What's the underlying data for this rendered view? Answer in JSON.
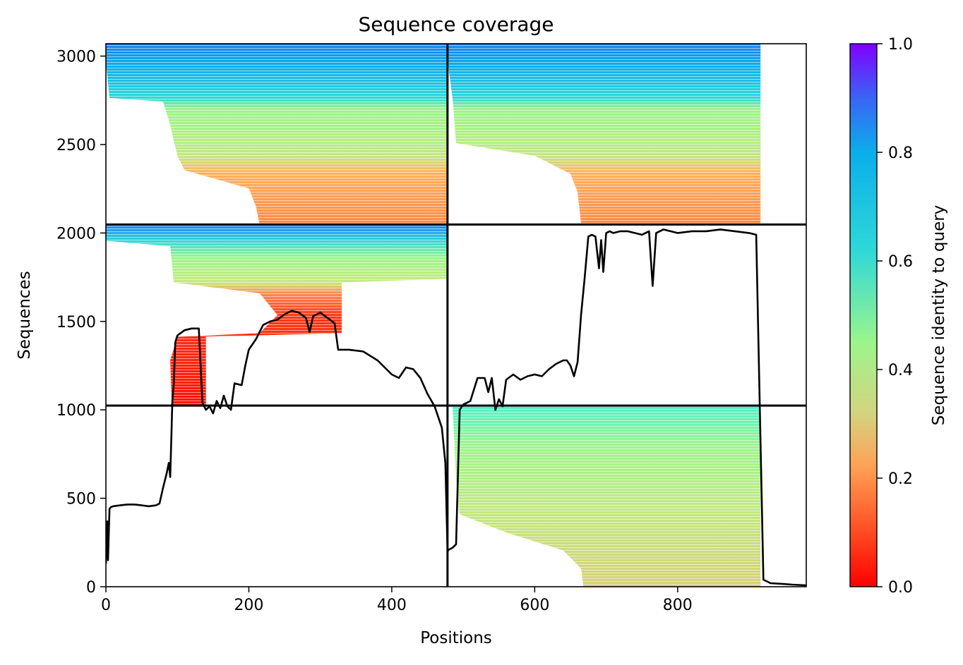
{
  "chart_data": {
    "type": "heatmap",
    "title": "Sequence coverage",
    "xlabel": "Positions",
    "ylabel": "Sequences",
    "xlim": [
      0,
      980
    ],
    "ylim": [
      0,
      3070
    ],
    "xticks": [
      0,
      200,
      400,
      600,
      800
    ],
    "yticks": [
      0,
      500,
      1000,
      1500,
      2000,
      2500,
      3000
    ],
    "grid": false,
    "colorbar": {
      "label": "Sequence identity to query",
      "range": [
        0.0,
        1.0
      ],
      "ticks": [
        0.0,
        0.2,
        0.4,
        0.6,
        0.8,
        1.0
      ],
      "colormap": "rainbow_r",
      "colors": [
        "#ff0000",
        "#ff9a55",
        "#d4d480",
        "#9cf58c",
        "#2ed8d8",
        "#0aaeea",
        "#1f80f0",
        "#8000ff"
      ]
    },
    "block_boundaries": {
      "x": [
        478
      ],
      "y": [
        1024,
        2048
      ]
    },
    "coverage_blocks": [
      {
        "x": [
          0,
          478
        ],
        "y": [
          2048,
          3070
        ],
        "identity_range": [
          0.2,
          0.8
        ]
      },
      {
        "x": [
          478,
          916
        ],
        "y": [
          2048,
          3070
        ],
        "identity_range": [
          0.2,
          0.8
        ]
      },
      {
        "x": [
          0,
          478
        ],
        "y": [
          1024,
          2048
        ],
        "identity_range": [
          0.0,
          0.8
        ]
      },
      {
        "x": [
          478,
          916
        ],
        "y": [
          0,
          1024
        ],
        "identity_range": [
          0.3,
          0.6
        ]
      }
    ],
    "coverage_line": {
      "name": "",
      "x": [
        0,
        2,
        3,
        5,
        7,
        10,
        20,
        30,
        40,
        50,
        60,
        70,
        75,
        80,
        85,
        88,
        90,
        92,
        93,
        95,
        97,
        100,
        110,
        120,
        130,
        135,
        140,
        145,
        150,
        155,
        160,
        165,
        170,
        175,
        180,
        190,
        195,
        200,
        210,
        220,
        230,
        240,
        250,
        260,
        270,
        280,
        285,
        290,
        300,
        310,
        320,
        325,
        330,
        340,
        360,
        380,
        400,
        410,
        420,
        430,
        440,
        450,
        460,
        470,
        475,
        478,
        480,
        485,
        490,
        495,
        500,
        505,
        510,
        520,
        530,
        535,
        540,
        545,
        550,
        555,
        560,
        570,
        580,
        590,
        600,
        610,
        620,
        630,
        640,
        645,
        650,
        655,
        660,
        665,
        670,
        675,
        680,
        685,
        690,
        693,
        696,
        700,
        705,
        710,
        720,
        730,
        740,
        750,
        760,
        765,
        770,
        780,
        790,
        800,
        820,
        840,
        860,
        880,
        900,
        910,
        915,
        920,
        930,
        950,
        960,
        970,
        980
      ],
      "values": [
        130,
        370,
        150,
        440,
        450,
        455,
        460,
        465,
        465,
        460,
        455,
        460,
        470,
        560,
        640,
        700,
        620,
        900,
        1050,
        1150,
        1380,
        1420,
        1450,
        1460,
        1460,
        1040,
        1000,
        1020,
        980,
        1050,
        1010,
        1080,
        1020,
        1000,
        1150,
        1140,
        1250,
        1340,
        1400,
        1480,
        1500,
        1510,
        1540,
        1560,
        1550,
        1520,
        1440,
        1530,
        1550,
        1520,
        1490,
        1340,
        1340,
        1340,
        1330,
        1280,
        1200,
        1180,
        1240,
        1230,
        1180,
        1090,
        1020,
        900,
        700,
        200,
        210,
        220,
        240,
        1000,
        1030,
        1040,
        1050,
        1180,
        1180,
        1100,
        1180,
        1000,
        1060,
        1020,
        1170,
        1200,
        1170,
        1190,
        1200,
        1190,
        1230,
        1260,
        1280,
        1280,
        1250,
        1190,
        1270,
        1540,
        1750,
        1980,
        1990,
        1980,
        1800,
        1960,
        1780,
        2000,
        2010,
        2000,
        2010,
        2010,
        2000,
        1990,
        2010,
        1700,
        2000,
        2020,
        2010,
        2000,
        2010,
        2010,
        2020,
        2010,
        2000,
        1990,
        1010,
        40,
        20,
        15,
        12,
        10,
        8
      ]
    }
  }
}
